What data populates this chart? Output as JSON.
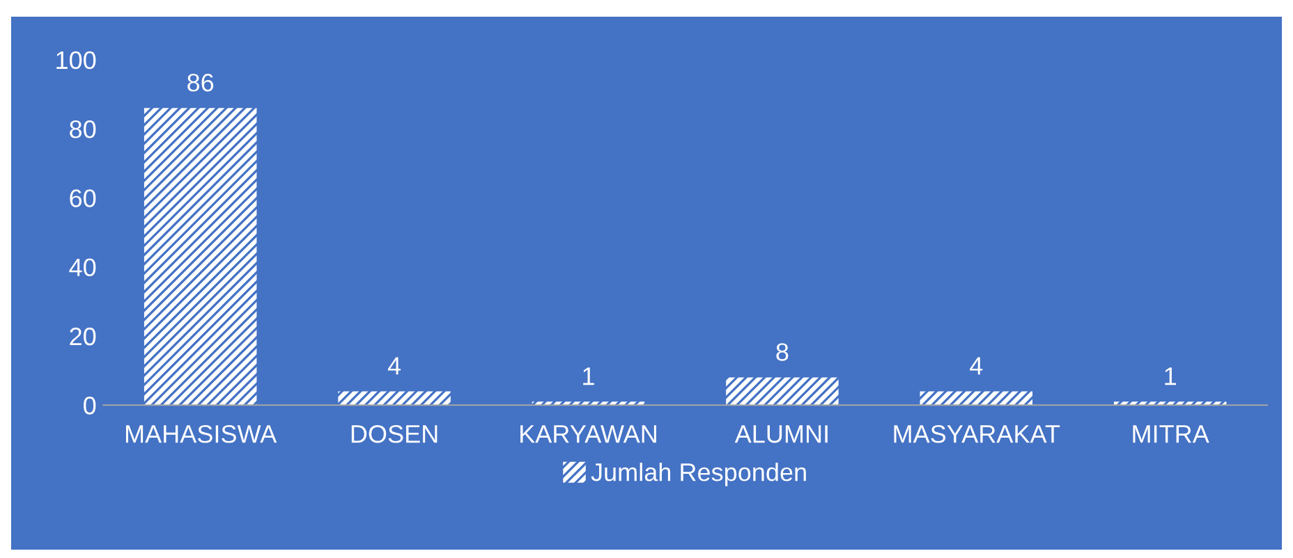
{
  "chart_data": {
    "type": "bar",
    "categories": [
      "MAHASISWA",
      "DOSEN",
      "KARYAWAN",
      "ALUMNI",
      "MASYARAKAT",
      "MITRA"
    ],
    "series": [
      {
        "name": "Jumlah Responden",
        "color": "#ffffff",
        "values": [
          86,
          4,
          1,
          8,
          4,
          1
        ]
      }
    ],
    "ylim": [
      0,
      100
    ],
    "yticks": [
      0,
      20,
      40,
      60,
      80,
      100
    ],
    "grid": false,
    "legend": "bottom",
    "data_labels": true
  }
}
